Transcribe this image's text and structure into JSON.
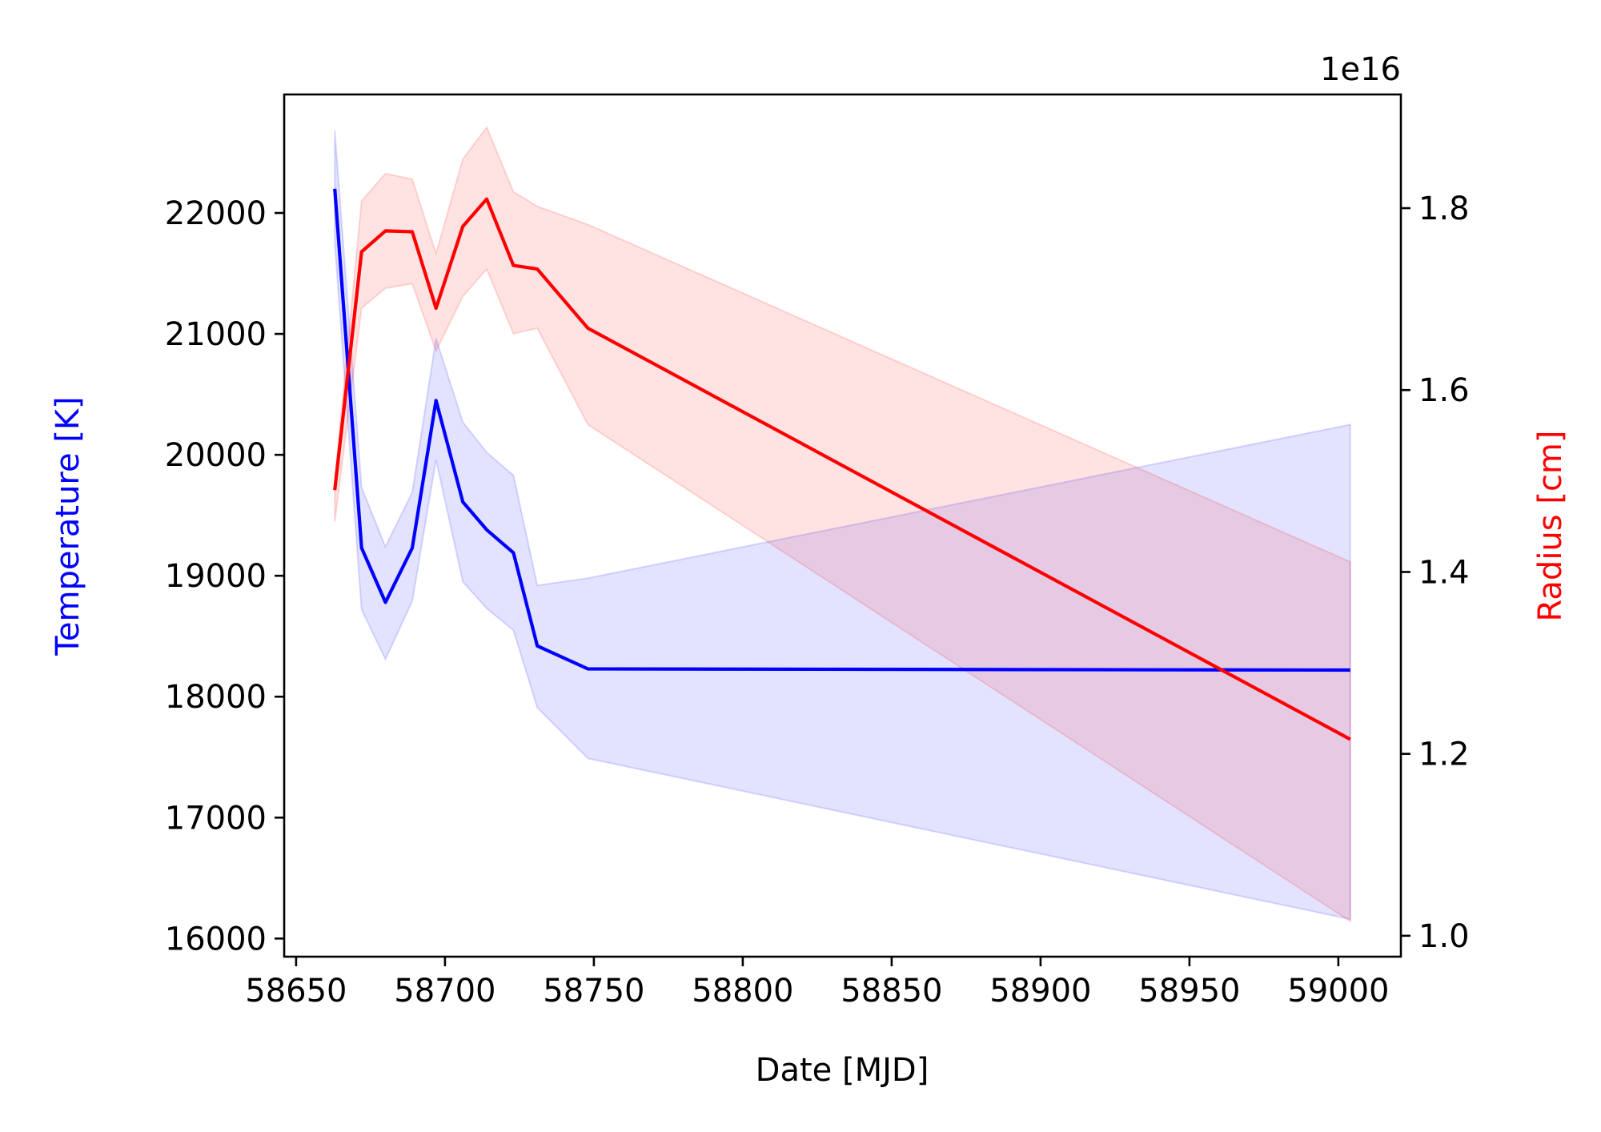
{
  "chart_data": {
    "type": "line",
    "title": "",
    "xlabel": "Date [MJD]",
    "ylabel_left": "Temperature [K]",
    "ylabel_right": "Radius [cm]",
    "right_offset_label": "1e16",
    "xlim": [
      58646,
      59021
    ],
    "ylim_left": [
      15850,
      22980
    ],
    "ylim_right": [
      0.977,
      1.925
    ],
    "x_ticks": [
      58650,
      58700,
      58750,
      58800,
      58850,
      58900,
      58950,
      59000
    ],
    "y_ticks_left": [
      16000,
      17000,
      18000,
      19000,
      20000,
      21000,
      22000
    ],
    "y_ticks_right": [
      1.0,
      1.2,
      1.4,
      1.6,
      1.8
    ],
    "grid": false,
    "legend": "none",
    "x": [
      58663,
      58672,
      58680,
      58689,
      58697,
      58706,
      58714,
      58723,
      58731,
      58748,
      59004
    ],
    "series": [
      {
        "axis": "left",
        "color": "#0000ff",
        "fill_color": "#0000ff",
        "values": [
          22200,
          19230,
          18780,
          19230,
          20450,
          19610,
          19380,
          19190,
          18420,
          18230,
          18220
        ],
        "lower": [
          21750,
          18720,
          18310,
          18790,
          19960,
          18950,
          18730,
          18550,
          17910,
          17490,
          16160
        ],
        "upper": [
          22680,
          19730,
          19240,
          19690,
          20960,
          20270,
          20020,
          19830,
          18920,
          18980,
          20250
        ]
      },
      {
        "axis": "right",
        "color": "#ff0000",
        "fill_color": "#ff0000",
        "values": [
          1.49,
          1.752,
          1.775,
          1.774,
          1.69,
          1.78,
          1.81,
          1.737,
          1.733,
          1.668,
          1.216
        ],
        "lower": [
          1.455,
          1.69,
          1.712,
          1.717,
          1.643,
          1.703,
          1.733,
          1.662,
          1.668,
          1.562,
          1.016
        ],
        "upper": [
          1.5,
          1.808,
          1.838,
          1.832,
          1.75,
          1.854,
          1.889,
          1.818,
          1.802,
          1.782,
          1.411
        ]
      }
    ]
  }
}
